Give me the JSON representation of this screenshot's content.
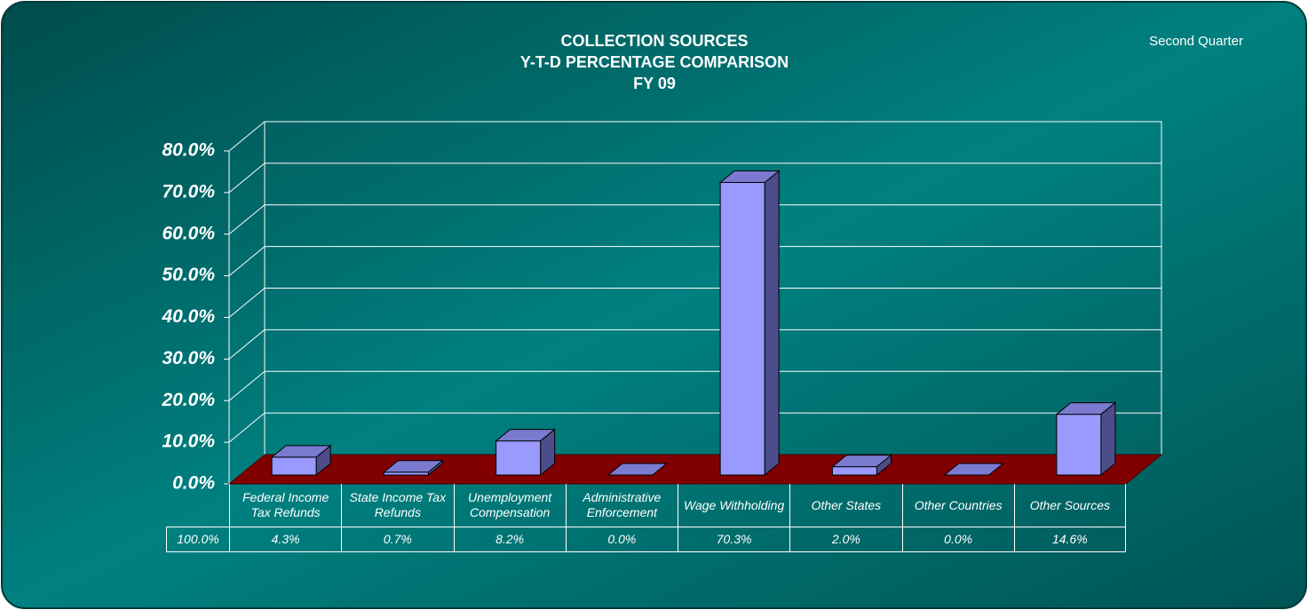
{
  "chart_data": {
    "type": "bar3d",
    "title_lines": [
      "COLLECTION SOURCES",
      "Y-T-D PERCENTAGE COMPARISON",
      "FY 09"
    ],
    "annotation": "Second Quarter",
    "categories": [
      "Federal Income Tax Refunds",
      "State Income Tax Refunds",
      "Unemployment Compensation",
      "Administrative Enforcement",
      "Wage Withholding",
      "Other States",
      "Other Countries",
      "Other Sources"
    ],
    "values": [
      4.3,
      0.7,
      8.2,
      0.0,
      70.3,
      2.0,
      0.0,
      14.6
    ],
    "value_labels": [
      "4.3%",
      "0.7%",
      "8.2%",
      "0.0%",
      "70.3%",
      "2.0%",
      "0.0%",
      "14.6%"
    ],
    "total_label": "100.0%",
    "color": "#9999ff",
    "floor_color": "#800000",
    "ylim": [
      0,
      80
    ],
    "yticks": [
      {
        "value": 0,
        "label": "0.0%"
      },
      {
        "value": 10,
        "label": "10.0%"
      },
      {
        "value": 20,
        "label": "20.0%"
      },
      {
        "value": 30,
        "label": "30.0%"
      },
      {
        "value": 40,
        "label": "40.0%"
      },
      {
        "value": 50,
        "label": "50.0%"
      },
      {
        "value": 60,
        "label": "60.0%"
      },
      {
        "value": 70,
        "label": "70.0%"
      },
      {
        "value": 80,
        "label": "80.0%"
      }
    ],
    "grid": true
  }
}
